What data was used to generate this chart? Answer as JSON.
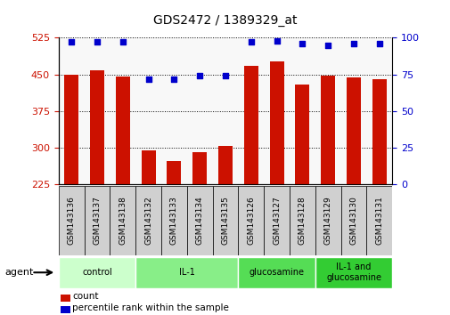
{
  "title": "GDS2472 / 1389329_at",
  "samples": [
    "GSM143136",
    "GSM143137",
    "GSM143138",
    "GSM143132",
    "GSM143133",
    "GSM143134",
    "GSM143135",
    "GSM143126",
    "GSM143127",
    "GSM143128",
    "GSM143129",
    "GSM143130",
    "GSM143131"
  ],
  "counts": [
    450,
    458,
    446,
    295,
    272,
    291,
    303,
    468,
    477,
    430,
    447,
    443,
    441
  ],
  "percentiles": [
    97,
    97,
    97,
    72,
    72,
    74,
    74,
    97,
    98,
    96,
    95,
    96,
    96
  ],
  "groups": [
    {
      "label": "control",
      "start": 0,
      "end": 3,
      "color": "#ccffcc"
    },
    {
      "label": "IL-1",
      "start": 3,
      "end": 7,
      "color": "#88ee88"
    },
    {
      "label": "glucosamine",
      "start": 7,
      "end": 10,
      "color": "#55dd55"
    },
    {
      "label": "IL-1 and\nglucosamine",
      "start": 10,
      "end": 13,
      "color": "#33cc33"
    }
  ],
  "bar_color": "#cc1100",
  "dot_color": "#0000cc",
  "ylim_left": [
    225,
    525
  ],
  "ylim_right": [
    0,
    100
  ],
  "yticks_left": [
    225,
    300,
    375,
    450,
    525
  ],
  "yticks_right": [
    0,
    25,
    50,
    75,
    100
  ],
  "ybaseline": 225,
  "agent_label": "agent",
  "legend_count": "count",
  "legend_percentile": "percentile rank within the sample",
  "plot_bg": "#f8f8f8",
  "tick_bg": "#d8d8d8"
}
